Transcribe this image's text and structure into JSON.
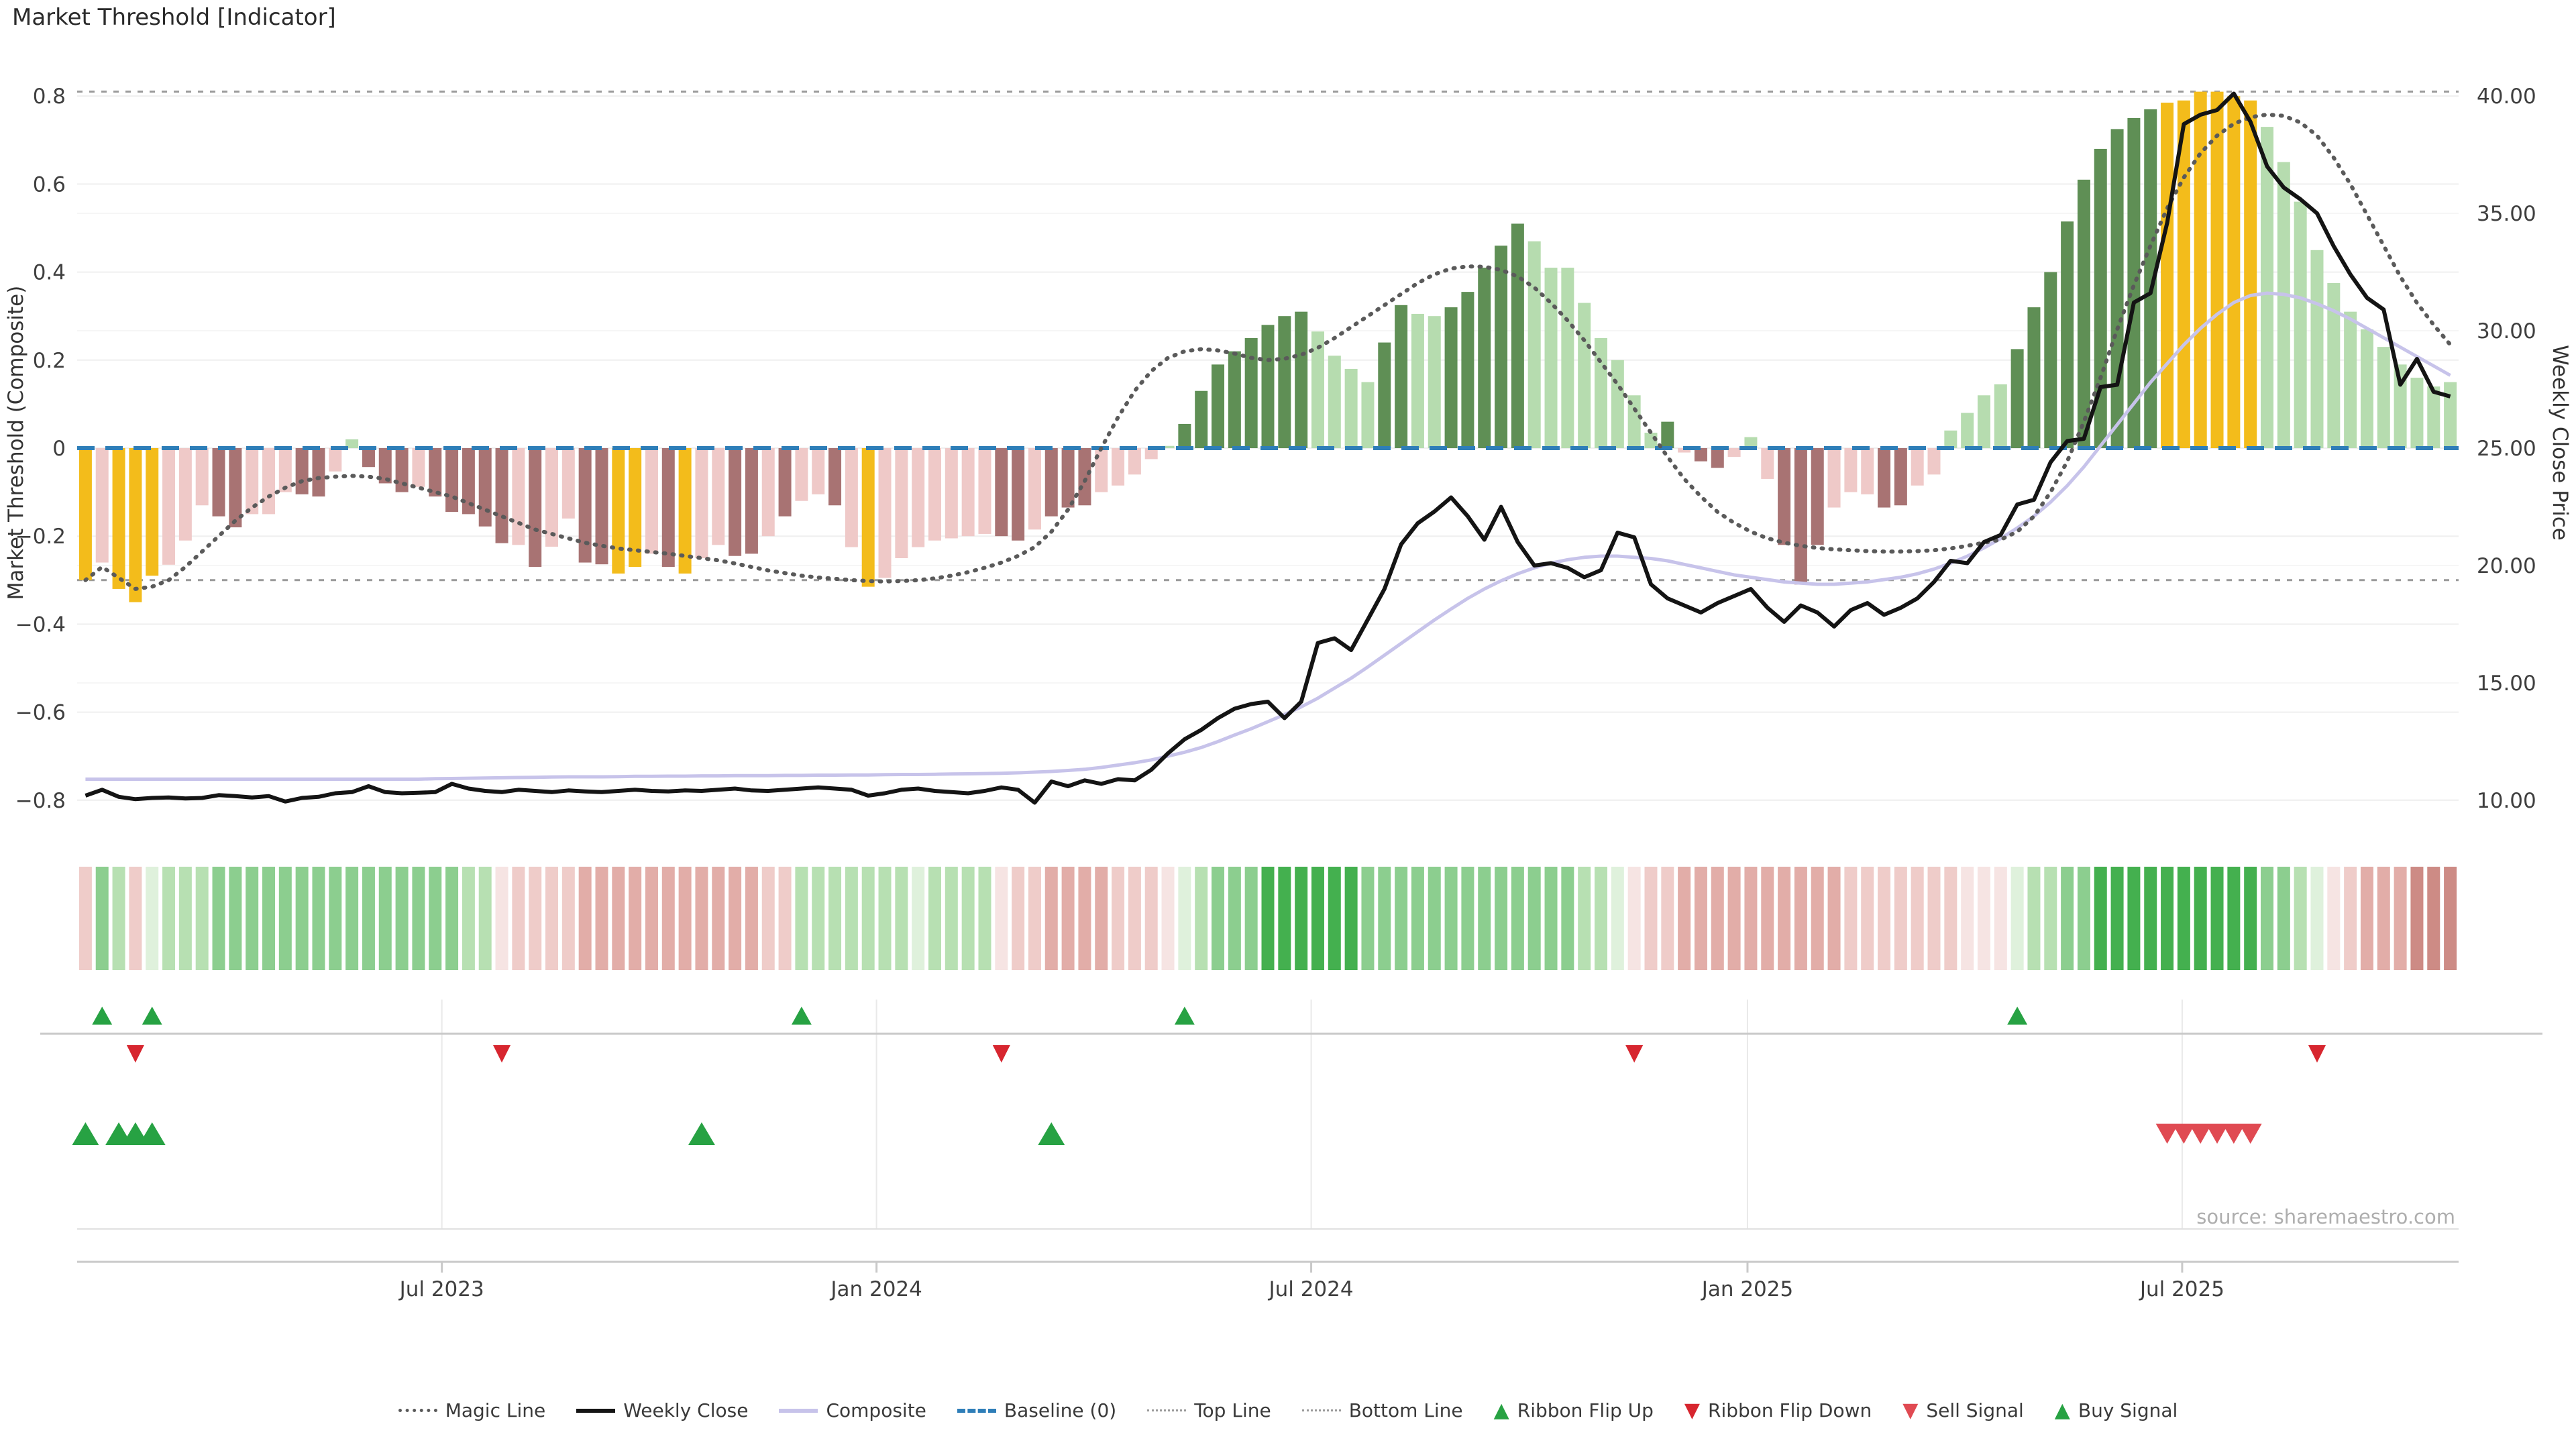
{
  "title": "Market Threshold [Indicator]",
  "source_credit": "source: sharemaestro.com",
  "axes": {
    "left_title": "Market Threshold (Composite)",
    "right_title": "Weekly Close Price",
    "left_ticks": [
      {
        "label": "0.8",
        "value": 0.8
      },
      {
        "label": "0.6",
        "value": 0.6
      },
      {
        "label": "0.4",
        "value": 0.4
      },
      {
        "label": "0.2",
        "value": 0.2
      },
      {
        "label": "0",
        "value": 0.0
      },
      {
        "label": "−0.2",
        "value": -0.2
      },
      {
        "label": "−0.4",
        "value": -0.4
      },
      {
        "label": "−0.6",
        "value": -0.6
      },
      {
        "label": "−0.8",
        "value": -0.8
      }
    ],
    "right_ticks": [
      {
        "label": "40.00",
        "price": 40
      },
      {
        "label": "35.00",
        "price": 35
      },
      {
        "label": "30.00",
        "price": 30
      },
      {
        "label": "25.00",
        "price": 25
      },
      {
        "label": "20.00",
        "price": 20
      },
      {
        "label": "15.00",
        "price": 15
      },
      {
        "label": "10.00",
        "price": 10
      }
    ],
    "x_ticks": [
      {
        "label": "Jul 2023",
        "week": 21.4
      },
      {
        "label": "Jan 2024",
        "week": 47.5
      },
      {
        "label": "Jul 2024",
        "week": 73.6
      },
      {
        "label": "Jan 2025",
        "week": 99.8
      },
      {
        "label": "Jul 2025",
        "week": 125.9
      }
    ]
  },
  "legend": [
    {
      "label": "Magic Line",
      "marker": "dots",
      "color": "#5a5a5a"
    },
    {
      "label": "Weekly Close",
      "marker": "solid-black",
      "color": "#141414"
    },
    {
      "label": "Composite",
      "marker": "solid-lavender",
      "color": "#c7c3ea"
    },
    {
      "label": "Baseline (0)",
      "marker": "dash-blue",
      "color": "#2e7eb8"
    },
    {
      "label": "Top Line",
      "marker": "dots-thin",
      "color": "#999999"
    },
    {
      "label": "Bottom Line",
      "marker": "dots-thin",
      "color": "#999999"
    },
    {
      "label": "Ribbon Flip Up",
      "marker": "tri-up",
      "color": "#27a243"
    },
    {
      "label": "Ribbon Flip Down",
      "marker": "tri-down",
      "color": "#d7262f"
    },
    {
      "label": "Sell Signal",
      "marker": "tri-down",
      "color": "#e04a52"
    },
    {
      "label": "Buy Signal",
      "marker": "tri-up",
      "color": "#27a243"
    }
  ],
  "colors": {
    "bar_gold": "#f3bc1b",
    "bar_pink": "#efc9c8",
    "bar_red": "#a87373",
    "bar_dark_green": "#5f8f55",
    "bar_light_green": "#b6dcaf",
    "magic_line": "#5a5a5a",
    "weekly_close": "#141414",
    "composite": "#c7c3ea",
    "baseline": "#2e7eb8",
    "bound_lines": "#9a9a9a",
    "grid": "#efefef",
    "axis_text": "#3f3f3f",
    "divider": "#c9c9c9",
    "source_text": "#aeaeae",
    "signal_green": "#27a243",
    "signal_red": "#d7262f",
    "sell_red": "#e04a52",
    "ribbon": {
      "g1": "#dff1dc",
      "g2": "#b7e0b2",
      "g3": "#8cce8f",
      "g4": "#44b04f",
      "r1": "#f6e4e3",
      "r2": "#efccc9",
      "r3": "#e2ada8",
      "r4": "#cd8b85"
    }
  },
  "chart_data": {
    "type": "bar",
    "title": "Market Threshold [Indicator]",
    "xlabel": "",
    "ylabel_left": "Market Threshold (Composite)",
    "ylabel_right": "Weekly Close Price",
    "ylim_left": [
      -0.9,
      0.9
    ],
    "ylim_right": [
      8.5,
      42
    ],
    "weeks": 143,
    "baseline": 0,
    "top_line": 0.81,
    "bottom_line": -0.3,
    "bars": {
      "name": "Market Threshold (Composite)",
      "values": [
        -0.3,
        -0.26,
        -0.32,
        -0.35,
        -0.29,
        -0.265,
        -0.21,
        -0.13,
        -0.155,
        -0.18,
        -0.15,
        -0.15,
        -0.1,
        -0.105,
        -0.11,
        -0.053,
        0.02,
        -0.043,
        -0.08,
        -0.1,
        -0.088,
        -0.11,
        -0.145,
        -0.15,
        -0.178,
        -0.216,
        -0.22,
        -0.27,
        -0.224,
        -0.16,
        -0.26,
        -0.264,
        -0.285,
        -0.27,
        -0.24,
        -0.27,
        -0.285,
        -0.25,
        -0.22,
        -0.245,
        -0.24,
        -0.2,
        -0.155,
        -0.12,
        -0.105,
        -0.13,
        -0.225,
        -0.315,
        -0.295,
        -0.25,
        -0.225,
        -0.21,
        -0.205,
        -0.2,
        -0.195,
        -0.2,
        -0.21,
        -0.185,
        -0.155,
        -0.135,
        -0.13,
        -0.1,
        -0.085,
        -0.06,
        -0.025,
        0.005,
        0.055,
        0.13,
        0.19,
        0.22,
        0.25,
        0.28,
        0.3,
        0.31,
        0.265,
        0.21,
        0.18,
        0.15,
        0.24,
        0.325,
        0.305,
        0.3,
        0.32,
        0.355,
        0.41,
        0.46,
        0.51,
        0.47,
        0.41,
        0.41,
        0.33,
        0.25,
        0.2,
        0.12,
        0.035,
        0.06,
        -0.01,
        -0.03,
        -0.045,
        -0.02,
        0.025,
        -0.07,
        -0.22,
        -0.31,
        -0.22,
        -0.135,
        -0.1,
        -0.105,
        -0.135,
        -0.13,
        -0.085,
        -0.06,
        0.04,
        0.08,
        0.12,
        0.145,
        0.225,
        0.32,
        0.4,
        0.515,
        0.61,
        0.68,
        0.725,
        0.75,
        0.77,
        0.785,
        0.79,
        0.81,
        0.81,
        0.8,
        0.79,
        0.73,
        0.65,
        0.56,
        0.45,
        0.375,
        0.31,
        0.27,
        0.23,
        0.19,
        0.16,
        0.14,
        0.15
      ],
      "palette": [
        "gold",
        "pink",
        "gold",
        "gold",
        "gold",
        "pink",
        "pink",
        "pink",
        "red",
        "red",
        "pink",
        "pink",
        "pink",
        "red",
        "red",
        "pink",
        "lt",
        "red",
        "red",
        "red",
        "pink",
        "red",
        "red",
        "red",
        "red",
        "red",
        "pink",
        "red",
        "pink",
        "pink",
        "red",
        "red",
        "gold",
        "gold",
        "pink",
        "red",
        "gold",
        "pink",
        "pink",
        "red",
        "red",
        "pink",
        "red",
        "pink",
        "pink",
        "red",
        "pink",
        "gold",
        "pink",
        "pink",
        "pink",
        "pink",
        "pink",
        "pink",
        "pink",
        "red",
        "red",
        "pink",
        "red",
        "red",
        "red",
        "pink",
        "pink",
        "pink",
        "pink",
        "lt",
        "dk",
        "dk",
        "dk",
        "dk",
        "dk",
        "dk",
        "dk",
        "dk",
        "lt",
        "lt",
        "lt",
        "lt",
        "dk",
        "dk",
        "lt",
        "lt",
        "dk",
        "dk",
        "dk",
        "dk",
        "dk",
        "lt",
        "lt",
        "lt",
        "lt",
        "lt",
        "lt",
        "lt",
        "lt",
        "dk",
        "pink",
        "red",
        "red",
        "pink",
        "lt",
        "pink",
        "red",
        "red",
        "red",
        "pink",
        "pink",
        "pink",
        "red",
        "red",
        "pink",
        "pink",
        "lt",
        "lt",
        "lt",
        "lt",
        "dk",
        "dk",
        "dk",
        "dk",
        "dk",
        "dk",
        "dk",
        "dk",
        "dk",
        "gold",
        "gold",
        "gold",
        "gold",
        "gold",
        "gold",
        "lt",
        "lt",
        "lt",
        "lt",
        "lt",
        "lt",
        "lt",
        "lt",
        "lt",
        "lt",
        "lt",
        "lt"
      ]
    },
    "series": [
      {
        "name": "Weekly Close",
        "axis": "price",
        "values": [
          10.2,
          10.45,
          10.15,
          10.05,
          10.1,
          10.12,
          10.08,
          10.1,
          10.22,
          10.18,
          10.12,
          10.18,
          9.95,
          10.1,
          10.15,
          10.3,
          10.35,
          10.6,
          10.35,
          10.3,
          10.32,
          10.35,
          10.7,
          10.5,
          10.4,
          10.35,
          10.45,
          10.4,
          10.35,
          10.42,
          10.38,
          10.35,
          10.4,
          10.45,
          10.4,
          10.38,
          10.42,
          10.4,
          10.45,
          10.5,
          10.42,
          10.4,
          10.45,
          10.5,
          10.55,
          10.5,
          10.45,
          10.2,
          10.3,
          10.45,
          10.5,
          10.4,
          10.35,
          10.3,
          10.4,
          10.55,
          10.45,
          9.9,
          10.8,
          10.6,
          10.85,
          10.7,
          10.9,
          10.85,
          11.3,
          12.0,
          12.6,
          13.0,
          13.5,
          13.9,
          14.1,
          14.2,
          13.5,
          14.2,
          16.7,
          16.9,
          16.4,
          17.7,
          19.0,
          20.9,
          21.8,
          22.3,
          22.9,
          22.1,
          21.1,
          22.5,
          21.0,
          20.0,
          20.1,
          19.9,
          19.5,
          19.8,
          21.4,
          21.2,
          19.2,
          18.6,
          18.3,
          18.0,
          18.4,
          18.7,
          19.0,
          18.2,
          17.6,
          18.3,
          18.0,
          17.4,
          18.1,
          18.4,
          17.9,
          18.2,
          18.6,
          19.3,
          20.2,
          20.1,
          21.0,
          21.3,
          22.6,
          22.8,
          24.4,
          25.3,
          25.4,
          27.6,
          27.7,
          31.2,
          31.6,
          34.6,
          38.8,
          39.2,
          39.4,
          40.1,
          38.9,
          37.0,
          36.1,
          35.6,
          35.0,
          33.6,
          32.4,
          31.4,
          30.9,
          27.7,
          28.8,
          27.4,
          27.2
        ]
      },
      {
        "name": "Composite",
        "axis": "price",
        "values": [
          10.9,
          10.9,
          10.9,
          10.9,
          10.9,
          10.9,
          10.9,
          10.9,
          10.9,
          10.9,
          10.9,
          10.9,
          10.9,
          10.9,
          10.9,
          10.9,
          10.9,
          10.9,
          10.9,
          10.9,
          10.9,
          10.92,
          10.93,
          10.94,
          10.95,
          10.96,
          10.97,
          10.98,
          10.99,
          11.0,
          11.0,
          11.0,
          11.01,
          11.02,
          11.02,
          11.03,
          11.03,
          11.04,
          11.04,
          11.05,
          11.05,
          11.05,
          11.06,
          11.06,
          11.07,
          11.07,
          11.08,
          11.08,
          11.09,
          11.1,
          11.1,
          11.11,
          11.12,
          11.13,
          11.14,
          11.15,
          11.17,
          11.2,
          11.23,
          11.27,
          11.32,
          11.4,
          11.5,
          11.6,
          11.72,
          11.88,
          12.05,
          12.25,
          12.5,
          12.78,
          13.05,
          13.35,
          13.65,
          13.98,
          14.35,
          14.78,
          15.2,
          15.68,
          16.18,
          16.68,
          17.18,
          17.68,
          18.15,
          18.6,
          19.0,
          19.35,
          19.65,
          19.9,
          20.1,
          20.25,
          20.35,
          20.4,
          20.4,
          20.35,
          20.3,
          20.2,
          20.05,
          19.9,
          19.75,
          19.6,
          19.5,
          19.4,
          19.3,
          19.25,
          19.2,
          19.2,
          19.25,
          19.3,
          19.4,
          19.5,
          19.65,
          19.85,
          20.1,
          20.4,
          20.75,
          21.15,
          21.6,
          22.1,
          22.7,
          23.4,
          24.2,
          25.1,
          26.0,
          26.9,
          27.8,
          28.6,
          29.4,
          30.1,
          30.7,
          31.2,
          31.5,
          31.6,
          31.55,
          31.4,
          31.15,
          30.85,
          30.5,
          30.1,
          29.7,
          29.3,
          28.9,
          28.5,
          28.1
        ]
      },
      {
        "name": "Magic Line",
        "axis": "indicator",
        "values": [
          -0.3,
          -0.27,
          -0.295,
          -0.32,
          -0.315,
          -0.3,
          -0.27,
          -0.235,
          -0.2,
          -0.165,
          -0.135,
          -0.11,
          -0.09,
          -0.075,
          -0.068,
          -0.065,
          -0.063,
          -0.065,
          -0.07,
          -0.08,
          -0.09,
          -0.1,
          -0.11,
          -0.125,
          -0.14,
          -0.155,
          -0.17,
          -0.185,
          -0.195,
          -0.205,
          -0.215,
          -0.222,
          -0.228,
          -0.232,
          -0.236,
          -0.24,
          -0.245,
          -0.25,
          -0.255,
          -0.262,
          -0.27,
          -0.278,
          -0.284,
          -0.29,
          -0.294,
          -0.297,
          -0.3,
          -0.302,
          -0.303,
          -0.302,
          -0.3,
          -0.296,
          -0.29,
          -0.282,
          -0.272,
          -0.26,
          -0.245,
          -0.225,
          -0.19,
          -0.14,
          -0.075,
          0.0,
          0.07,
          0.13,
          0.175,
          0.205,
          0.22,
          0.225,
          0.222,
          0.215,
          0.205,
          0.2,
          0.203,
          0.212,
          0.228,
          0.25,
          0.275,
          0.3,
          0.325,
          0.35,
          0.375,
          0.395,
          0.408,
          0.413,
          0.412,
          0.405,
          0.39,
          0.365,
          0.33,
          0.29,
          0.245,
          0.195,
          0.145,
          0.09,
          0.035,
          -0.02,
          -0.07,
          -0.11,
          -0.145,
          -0.17,
          -0.19,
          -0.205,
          -0.215,
          -0.222,
          -0.227,
          -0.23,
          -0.232,
          -0.234,
          -0.235,
          -0.235,
          -0.234,
          -0.232,
          -0.228,
          -0.222,
          -0.215,
          -0.208,
          -0.19,
          -0.155,
          -0.1,
          -0.03,
          0.06,
          0.16,
          0.27,
          0.37,
          0.46,
          0.545,
          0.615,
          0.67,
          0.71,
          0.737,
          0.752,
          0.758,
          0.755,
          0.74,
          0.71,
          0.66,
          0.6,
          0.53,
          0.46,
          0.39,
          0.33,
          0.28,
          0.235
        ]
      }
    ],
    "ribbon": [
      "r2",
      "g3",
      "g2",
      "r2",
      "g1",
      "g2",
      "g2",
      "g2",
      "g3",
      "g3",
      "g3",
      "g3",
      "g3",
      "g3",
      "g3",
      "g3",
      "g3",
      "g3",
      "g3",
      "g3",
      "g3",
      "g3",
      "g3",
      "g2",
      "g2",
      "r1",
      "r2",
      "r2",
      "r2",
      "r2",
      "r3",
      "r3",
      "r3",
      "r3",
      "r3",
      "r3",
      "r3",
      "r3",
      "r3",
      "r3",
      "r3",
      "r2",
      "r2",
      "g2",
      "g2",
      "g2",
      "g2",
      "g2",
      "g2",
      "g2",
      "g1",
      "g2",
      "g2",
      "g2",
      "g2",
      "r1",
      "r2",
      "r2",
      "r3",
      "r3",
      "r3",
      "r3",
      "r2",
      "r2",
      "r2",
      "r1",
      "g1",
      "g2",
      "g3",
      "g3",
      "g3",
      "g4",
      "g4",
      "g4",
      "g4",
      "g4",
      "g4",
      "g3",
      "g3",
      "g3",
      "g3",
      "g3",
      "g3",
      "g3",
      "g3",
      "g3",
      "g3",
      "g3",
      "g3",
      "g3",
      "g2",
      "g2",
      "g1",
      "r1",
      "r2",
      "r2",
      "r3",
      "r3",
      "r3",
      "r3",
      "r3",
      "r3",
      "r3",
      "r3",
      "r3",
      "r3",
      "r2",
      "r2",
      "r2",
      "r2",
      "r2",
      "r2",
      "r2",
      "r1",
      "r1",
      "r1",
      "g1",
      "g2",
      "g2",
      "g3",
      "g3",
      "g4",
      "g4",
      "g4",
      "g4",
      "g4",
      "g4",
      "g4",
      "g4",
      "g4",
      "g4",
      "g3",
      "g3",
      "g2",
      "g1",
      "r1",
      "r2",
      "r3",
      "r3",
      "r3",
      "r4",
      "r4",
      "r4"
    ],
    "signals": {
      "ribbon_flip_up": [
        1,
        4,
        43,
        66,
        116
      ],
      "ribbon_flip_down": [
        3,
        25,
        55,
        93,
        134
      ],
      "buy": [
        0,
        2,
        3,
        4,
        37,
        58
      ],
      "sell": [
        125,
        126,
        127,
        128,
        129,
        130
      ]
    }
  }
}
